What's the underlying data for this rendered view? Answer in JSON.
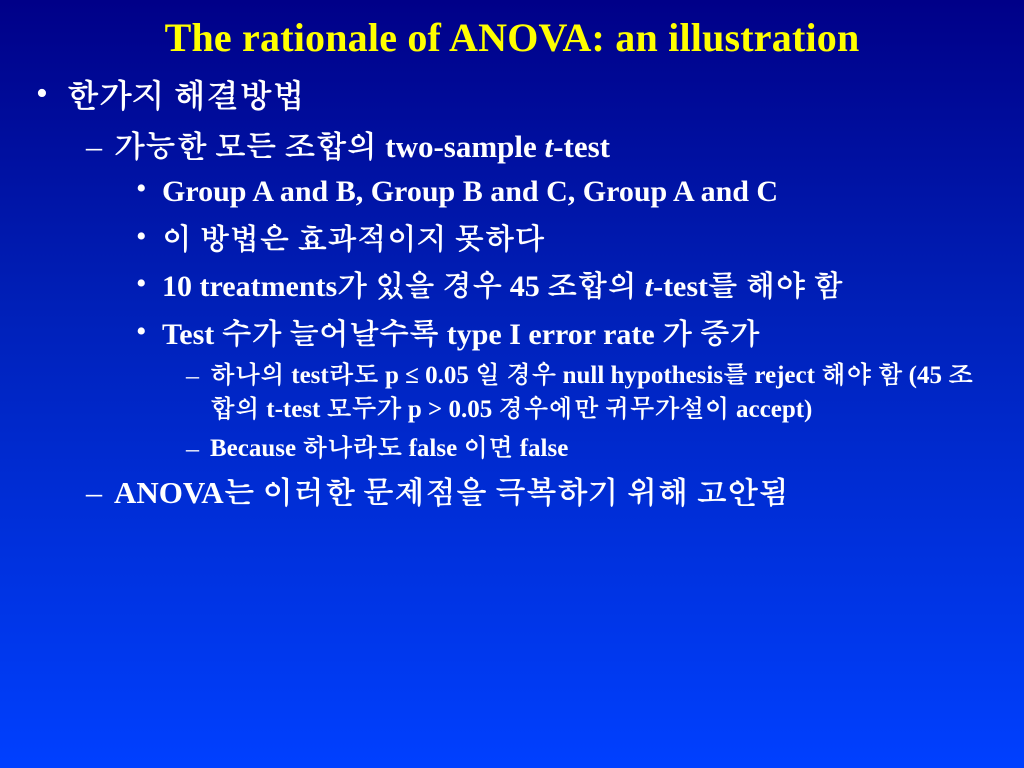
{
  "title": "The rationale of ANOVA: an illustration",
  "colors": {
    "title": "#ffff00",
    "text": "#ffffff",
    "bg_top": "#000088",
    "bg_bottom": "#0040ff"
  },
  "bullets": {
    "lvl1_1": "한가지 해결방법",
    "lvl2_1_prefix": "가능한 모든 조합의 two-sample ",
    "lvl2_1_t": "t",
    "lvl2_1_suffix": "-test",
    "lvl3_1": "Group A and B, Group B and C, Group A and C",
    "lvl3_2": "이 방법은 효과적이지 못하다",
    "lvl3_3_prefix": "10 treatments가 있을 경우 45 조합의 ",
    "lvl3_3_t": "t",
    "lvl3_3_suffix": "-test를 해야 함",
    "lvl3_4": "Test 수가 늘어날수록  type I error rate 가 증가",
    "lvl4_1": "하나의 test라도 p ≤ 0.05 일 경우 null hypothesis를 reject 해야 함 (45 조합의 t-test 모두가 p > 0.05 경우에만 귀무가설이 accept)",
    "lvl4_2": "Because 하나라도 false 이면 false",
    "lvl2_2": "ANOVA는 이러한 문제점을 극복하기 위해 고안됨"
  }
}
